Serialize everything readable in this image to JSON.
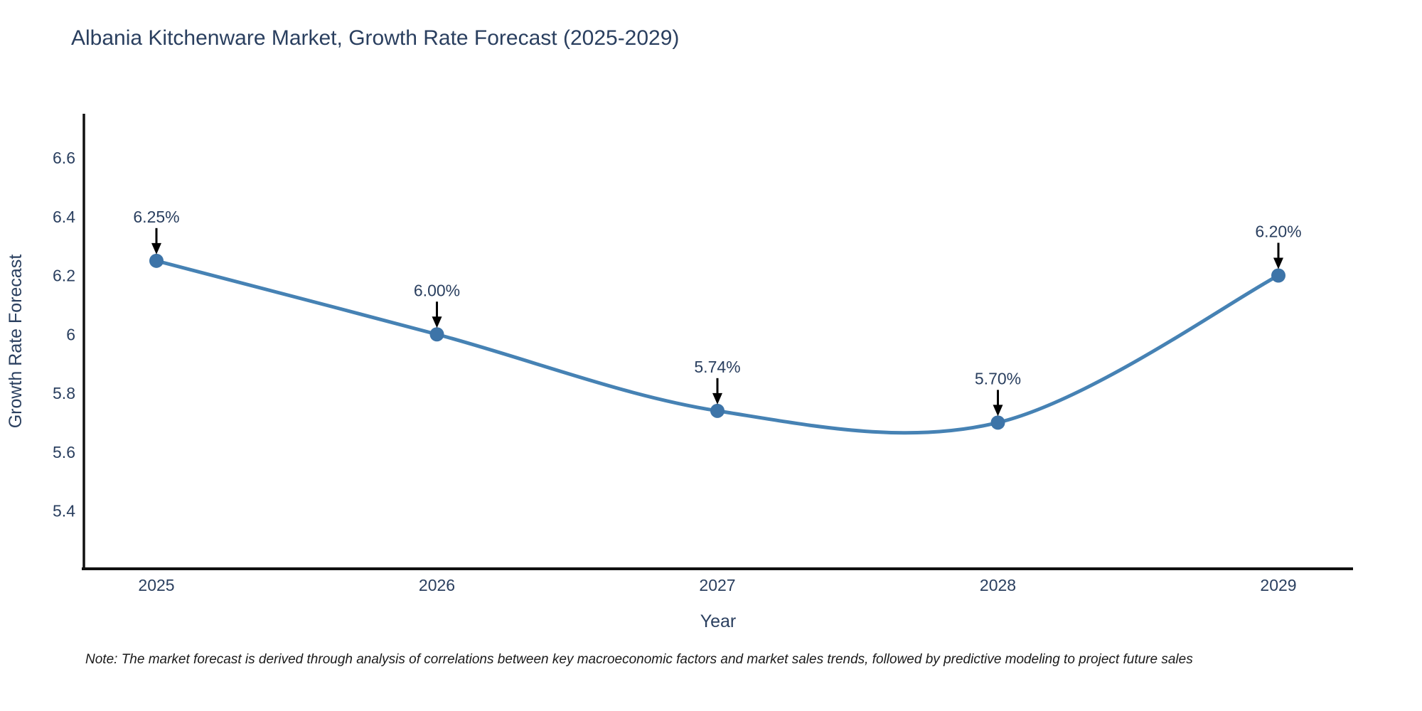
{
  "chart_data": {
    "type": "line",
    "title": "Albania Kitchenware Market, Growth Rate Forecast (2025-2029)",
    "xlabel": "Year",
    "ylabel": "Growth Rate Forecast",
    "x": [
      2025,
      2026,
      2027,
      2028,
      2029
    ],
    "series": [
      {
        "name": "Growth Rate Forecast",
        "values": [
          6.25,
          6.0,
          5.74,
          5.7,
          6.2
        ]
      }
    ],
    "point_labels": [
      "6.25%",
      "6.00%",
      "5.74%",
      "5.70%",
      "6.20%"
    ],
    "xtick_labels": [
      "2025",
      "2026",
      "2027",
      "2028",
      "2029"
    ],
    "ytick_values": [
      6.6,
      6.4,
      6.2,
      6.0,
      5.8,
      5.6,
      5.4
    ],
    "ytick_labels": [
      "6.6",
      "6.4",
      "6.2",
      "6",
      "5.8",
      "5.6",
      "5.4"
    ],
    "ylim": [
      5.2,
      6.75
    ],
    "line_shape": "spline",
    "grid": false,
    "legend": "none",
    "colors": {
      "line": "#4682b4",
      "marker": "#3d74a8",
      "arrow": "#000000",
      "text": "#2a3f5f",
      "axis": "#111111"
    }
  },
  "note": "Note: The market forecast is derived through analysis of correlations between key macroeconomic factors and market sales trends, followed by predictive modeling to project future sales"
}
